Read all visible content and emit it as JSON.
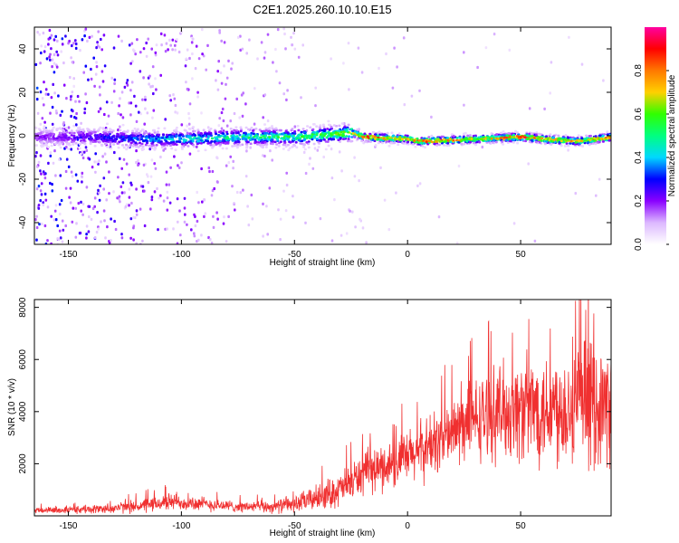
{
  "title": "C2E1.2025.260.10.10.E15",
  "chart_data": [
    {
      "type": "heatmap",
      "xlabel": "Height of straight line (km)",
      "ylabel": "Frequency (Hz)",
      "xlim": [
        -165,
        90
      ],
      "ylim": [
        -50,
        50
      ],
      "xticks": [
        -150,
        -100,
        -50,
        0,
        50
      ],
      "xtick_labels": [
        "-150",
        "-100",
        "-50",
        "0",
        "50"
      ],
      "yticks": [
        -40,
        -20,
        0,
        20,
        40
      ],
      "ytick_labels": [
        "-40",
        "-20",
        "0",
        "20",
        "40"
      ],
      "ridge": [
        {
          "x": -165,
          "freq": 0,
          "amp": 0.15
        },
        {
          "x": -140,
          "freq": 0,
          "amp": 0.25
        },
        {
          "x": -120,
          "freq": -1,
          "amp": 0.35
        },
        {
          "x": -100,
          "freq": -1,
          "amp": 0.45
        },
        {
          "x": -75,
          "freq": 0,
          "amp": 0.5
        },
        {
          "x": -50,
          "freq": 0,
          "amp": 0.55
        },
        {
          "x": -35,
          "freq": 1,
          "amp": 0.6
        },
        {
          "x": -25,
          "freq": 2,
          "amp": 0.7
        },
        {
          "x": -20,
          "freq": 0,
          "amp": 0.95
        },
        {
          "x": 0,
          "freq": -1,
          "amp": 0.75
        },
        {
          "x": 5,
          "freq": -2,
          "amp": 0.95
        },
        {
          "x": 30,
          "freq": -1,
          "amp": 0.7
        },
        {
          "x": 50,
          "freq": 0,
          "amp": 0.95
        },
        {
          "x": 60,
          "freq": -1,
          "amp": 0.85
        },
        {
          "x": 75,
          "freq": -2,
          "amp": 0.75
        },
        {
          "x": 90,
          "freq": 0,
          "amp": 0.9
        }
      ],
      "colorbar": {
        "label": "Normalized spectral amplitude",
        "range": [
          0,
          1
        ],
        "ticks": [
          0.0,
          0.2,
          0.4,
          0.6,
          0.8
        ],
        "tick_labels": [
          "0.0",
          "0.2",
          "0.4",
          "0.6",
          "0.8"
        ],
        "colors": [
          "#ffffff",
          "#dcb8ff",
          "#8a00ff",
          "#0000ff",
          "#00d8ff",
          "#00ff80",
          "#30ff00",
          "#ffd000",
          "#ff7800",
          "#ff0000",
          "#ff00a0"
        ]
      }
    },
    {
      "type": "line",
      "xlabel": "Height of straight line (km)",
      "ylabel": "SNR (10 * v/v)",
      "xlim": [
        -165,
        90
      ],
      "ylim": [
        0,
        8300
      ],
      "xticks": [
        -150,
        -100,
        -50,
        0,
        50
      ],
      "xtick_labels": [
        "-150",
        "-100",
        "-50",
        "0",
        "50"
      ],
      "yticks": [
        2000,
        4000,
        6000,
        8000
      ],
      "ytick_labels": [
        "2000",
        "4000",
        "6000",
        "8000"
      ],
      "color": "#f03030",
      "envelope": {
        "x": [
          -165,
          -140,
          -130,
          -115,
          -105,
          -90,
          -75,
          -60,
          -50,
          -40,
          -30,
          -25,
          -20,
          -10,
          0,
          10,
          20,
          30,
          40,
          50,
          60,
          70,
          80,
          90
        ],
        "mean": [
          200,
          250,
          300,
          400,
          550,
          450,
          350,
          350,
          450,
          700,
          1000,
          1300,
          1600,
          1900,
          2200,
          2700,
          3200,
          3700,
          4000,
          4100,
          4200,
          4200,
          4300,
          4200
        ],
        "spread": [
          150,
          200,
          250,
          350,
          400,
          350,
          250,
          300,
          400,
          600,
          800,
          900,
          1000,
          1100,
          1300,
          1500,
          1700,
          1900,
          2200,
          2500,
          2700,
          2800,
          3000,
          2600
        ]
      }
    }
  ]
}
